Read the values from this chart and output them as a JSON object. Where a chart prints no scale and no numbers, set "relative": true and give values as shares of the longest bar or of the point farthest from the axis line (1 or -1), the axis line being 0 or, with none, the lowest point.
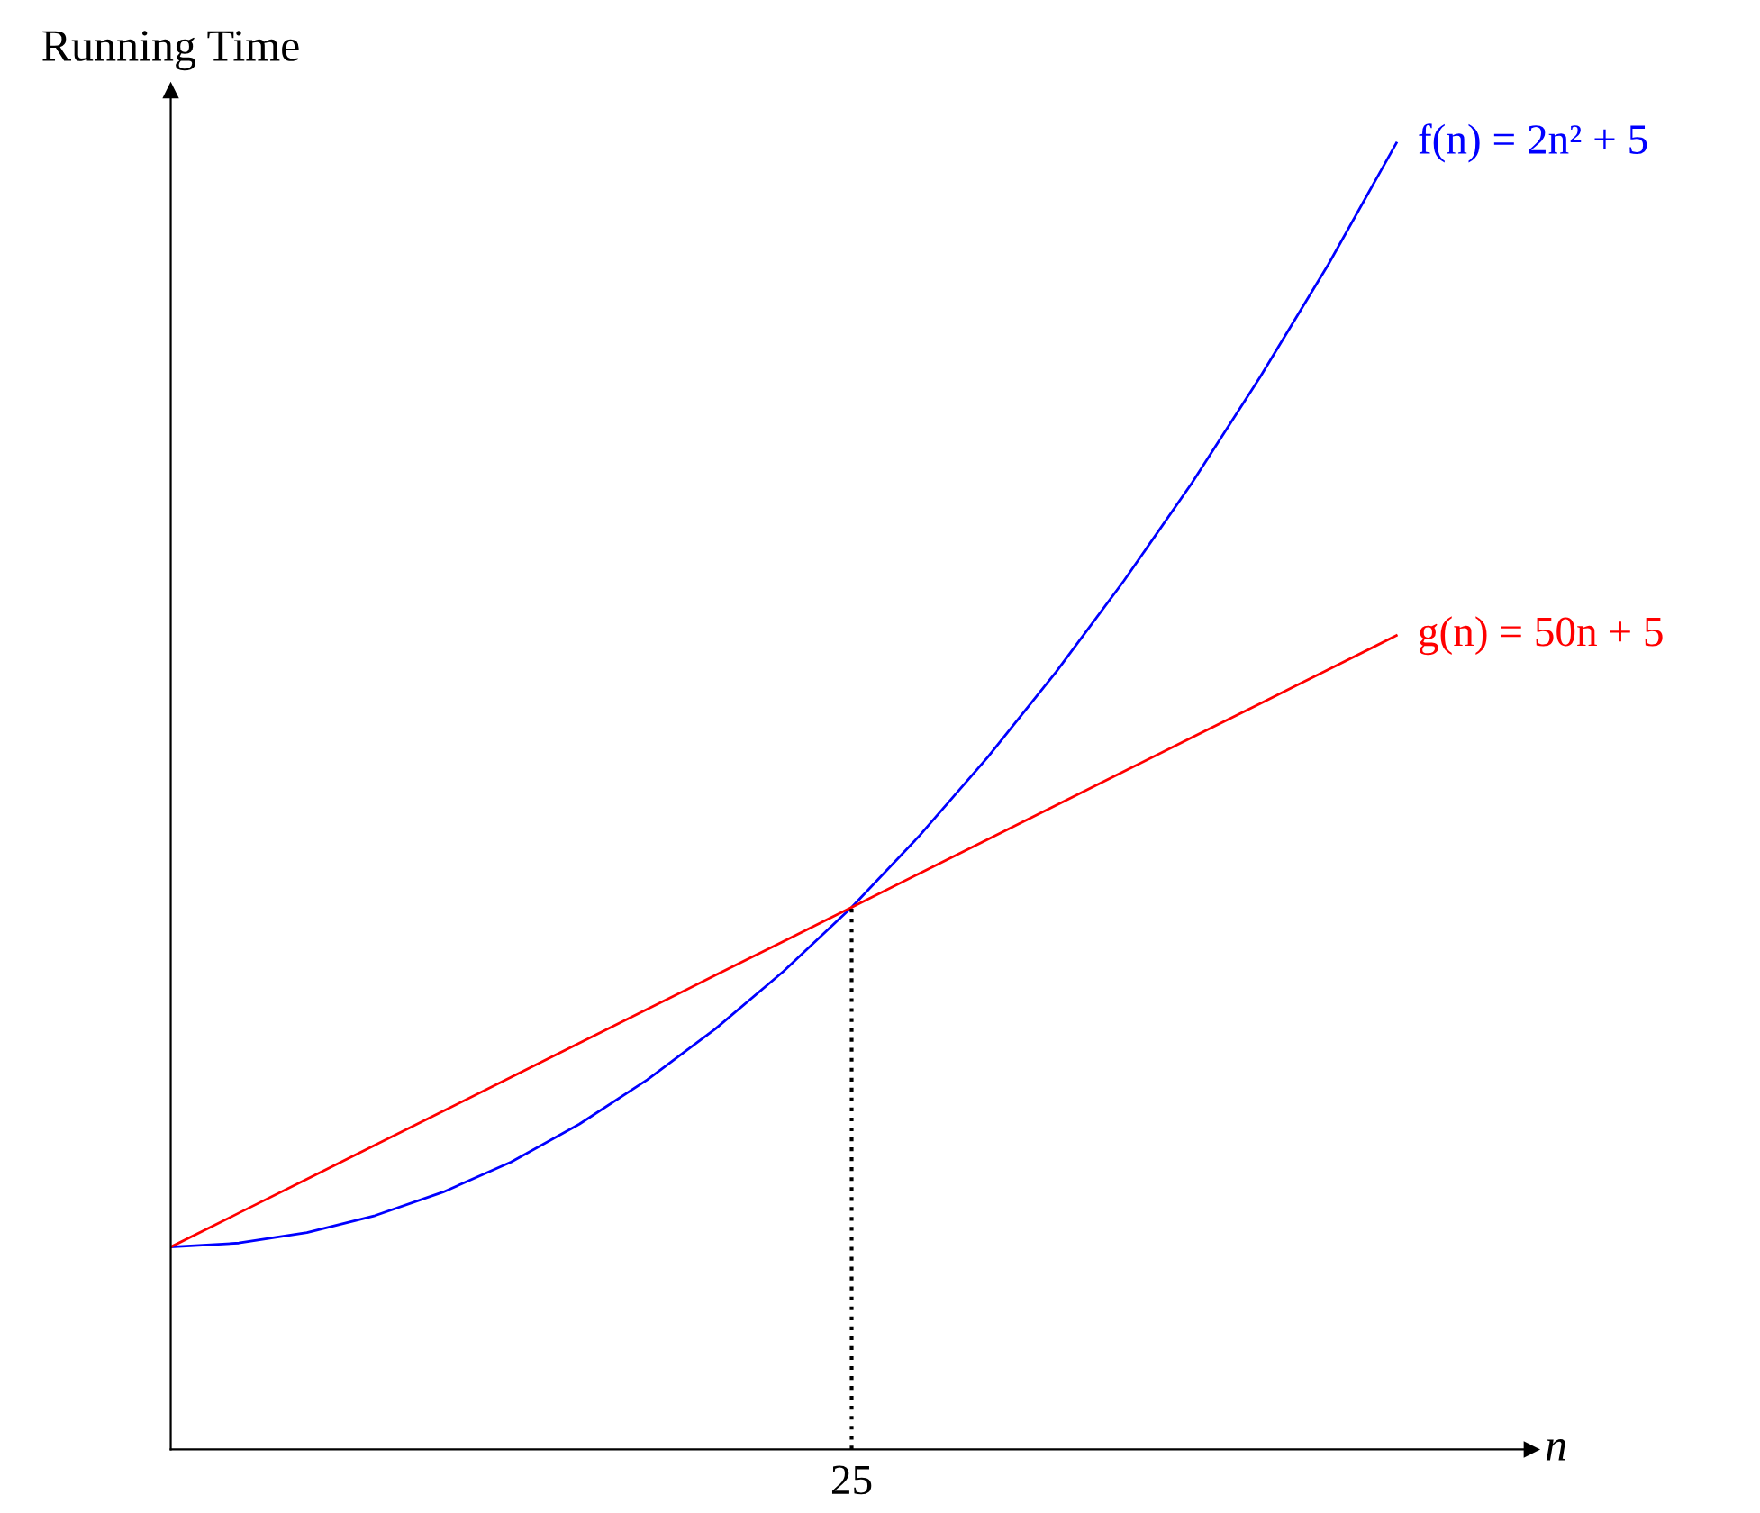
{
  "chart_data": {
    "type": "line",
    "relative": true,
    "ylabel": "Running Time",
    "xlabel": "n",
    "annotations": [
      "25"
    ],
    "legend": false,
    "marker": "none",
    "line_style": "solid",
    "categories": [
      null,
      null,
      null,
      null,
      null,
      null,
      null,
      null,
      null,
      null,
      null,
      null,
      null,
      null,
      null,
      null,
      null,
      null,
      null
    ],
    "series": [
      {
        "name": "f(n) = 2n² + 5",
        "color": "#0000ff",
        "values": [
          0.155,
          0.158,
          0.166,
          0.179,
          0.197,
          0.22,
          0.249,
          0.283,
          0.322,
          0.366,
          0.415,
          0.47,
          0.53,
          0.595,
          0.665,
          0.74,
          0.821,
          0.907,
          1.0
        ]
      },
      {
        "name": "g(n) = 50n + 5",
        "color": "#ff0000",
        "values": [
          0.155,
          0.181,
          0.207,
          0.233,
          0.259,
          0.285,
          0.311,
          0.337,
          0.363,
          0.389,
          0.415,
          0.441,
          0.467,
          0.493,
          0.519,
          0.545,
          0.571,
          0.597,
          0.623
        ]
      }
    ]
  }
}
